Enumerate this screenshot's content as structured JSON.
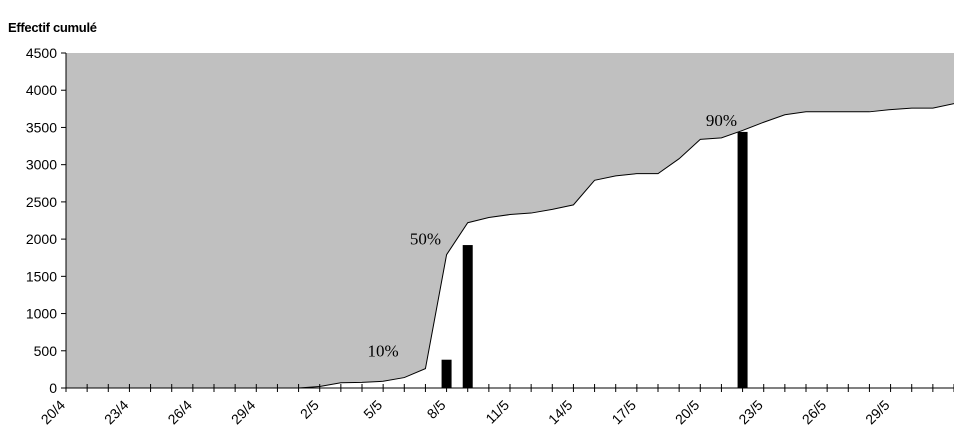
{
  "chart_data": {
    "type": "area",
    "title": "",
    "ylabel": "Effectif cumulé",
    "xlabel": "",
    "ylim": [
      0,
      4500
    ],
    "y_ticks": [
      0,
      500,
      1000,
      1500,
      2000,
      2500,
      3000,
      3500,
      4000,
      4500
    ],
    "x_tick_labels": [
      "20/4",
      "23/4",
      "26/4",
      "29/4",
      "2/5",
      "5/5",
      "8/5",
      "11/5",
      "14/5",
      "17/5",
      "20/5",
      "23/5",
      "26/5",
      "29/5"
    ],
    "area_fill_color": "#c0c0c0",
    "bar_color": "#000000",
    "x": [
      "20/4",
      "21/4",
      "22/4",
      "23/4",
      "24/4",
      "25/4",
      "26/4",
      "27/4",
      "28/4",
      "29/4",
      "30/4",
      "1/5",
      "2/5",
      "3/5",
      "4/5",
      "5/5",
      "6/5",
      "7/5",
      "8/5",
      "9/5",
      "10/5",
      "11/5",
      "12/5",
      "13/5",
      "14/5",
      "15/5",
      "16/5",
      "17/5",
      "18/5",
      "19/5",
      "20/5",
      "21/5",
      "22/5",
      "23/5",
      "24/5",
      "25/5",
      "26/5",
      "27/5",
      "28/5",
      "29/5",
      "30/5",
      "31/5",
      "1/6"
    ],
    "series": [
      {
        "type": "line",
        "values": [
          0,
          0,
          0,
          0,
          0,
          0,
          0,
          0,
          0,
          0,
          0,
          0,
          20,
          70,
          75,
          90,
          140,
          260,
          1790,
          2220,
          2290,
          2330,
          2350,
          2400,
          2460,
          2790,
          2850,
          2880,
          2880,
          3080,
          3340,
          3360,
          3460,
          3570,
          3670,
          3710,
          3710,
          3710,
          3710,
          3740,
          3760,
          3760,
          3820
        ]
      },
      {
        "type": "bar",
        "bars": [
          {
            "x": "8/5",
            "value": 380
          },
          {
            "x": "9/5",
            "value": 1920
          },
          {
            "x": "22/5",
            "value": 3440
          }
        ]
      }
    ],
    "annotations": [
      {
        "text": "10%",
        "x": "5/5",
        "y": 420
      },
      {
        "text": "50%",
        "x": "7/5",
        "y": 1930
      },
      {
        "text": "90%",
        "x": "21/5",
        "y": 3520
      }
    ],
    "grid": false,
    "legend": "none"
  }
}
